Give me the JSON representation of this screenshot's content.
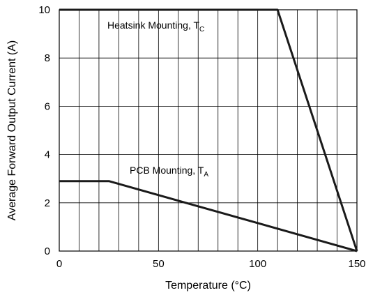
{
  "chart_data": {
    "type": "line",
    "xlabel": "Temperature (°C)",
    "ylabel": "Average Forward Output Current (A)",
    "xlim": [
      0,
      150
    ],
    "ylim": [
      0,
      10
    ],
    "x_ticks": [
      0,
      50,
      100,
      150
    ],
    "y_ticks": [
      0,
      2,
      4,
      6,
      8,
      10
    ],
    "x_minor_step": 10,
    "grid": true,
    "series": [
      {
        "points": [
          [
            0,
            10
          ],
          [
            110,
            10
          ],
          [
            150,
            0
          ]
        ],
        "annotation": "Heatsink Mounting, T",
        "annotation_sub": "C"
      },
      {
        "points": [
          [
            0,
            2.9
          ],
          [
            25,
            2.9
          ],
          [
            150,
            0
          ]
        ],
        "annotation": "PCB Mounting, T",
        "annotation_sub": "A"
      }
    ],
    "line_color": "#1a1a1a"
  }
}
